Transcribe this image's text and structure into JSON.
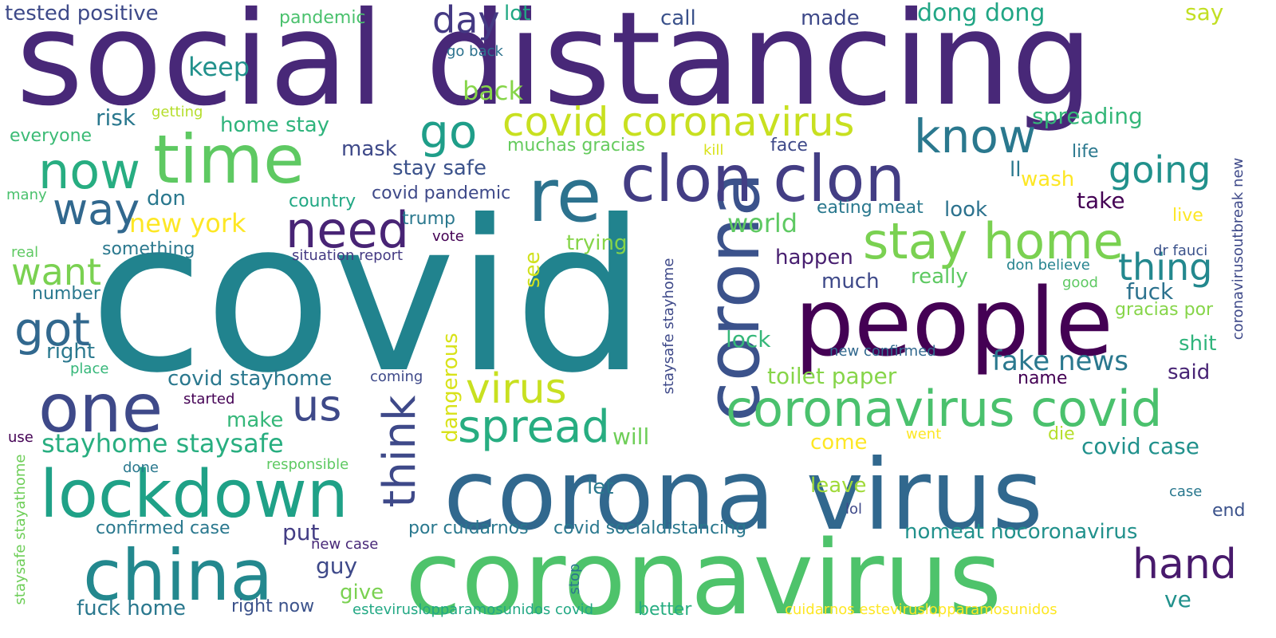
{
  "words": [
    {
      "text": "social distancing",
      "color": "#482878"
    },
    {
      "text": "covid",
      "color": "#21838e"
    },
    {
      "text": "coronavirus",
      "color": "#4ec36b"
    },
    {
      "text": "corona virus",
      "color": "#31688e"
    },
    {
      "text": "people",
      "color": "#440154"
    },
    {
      "text": "corona",
      "color": "#3b528b"
    },
    {
      "text": "re",
      "color": "#2c728e"
    },
    {
      "text": "clon clon",
      "color": "#433d84"
    },
    {
      "text": "time",
      "color": "#5ec962"
    },
    {
      "text": "one",
      "color": "#3e4989"
    },
    {
      "text": "china",
      "color": "#23888e"
    },
    {
      "text": "lockdown",
      "color": "#1fa187"
    },
    {
      "text": "coronavirus covid",
      "color": "#4ac16d"
    },
    {
      "text": "stay home",
      "color": "#7ad151"
    },
    {
      "text": "covid coronavirus",
      "color": "#c8e020"
    },
    {
      "text": "need",
      "color": "#482475"
    },
    {
      "text": "now",
      "color": "#27ad81"
    },
    {
      "text": "know",
      "color": "#2a788e"
    },
    {
      "text": "way",
      "color": "#31688e"
    },
    {
      "text": "go",
      "color": "#1f9e89"
    },
    {
      "text": "going",
      "color": "#21918c"
    },
    {
      "text": "want",
      "color": "#7ad151"
    },
    {
      "text": "got",
      "color": "#31688e"
    },
    {
      "text": "virus",
      "color": "#c8e020"
    },
    {
      "text": "spread",
      "color": "#27ad81"
    },
    {
      "text": "think",
      "color": "#3e4989"
    },
    {
      "text": "us",
      "color": "#3e4989"
    },
    {
      "text": "hand",
      "color": "#481a6c"
    },
    {
      "text": "thing",
      "color": "#23888e"
    },
    {
      "text": "day",
      "color": "#443983"
    },
    {
      "text": "stayhome staysafe",
      "color": "#28ae80"
    },
    {
      "text": "fake news",
      "color": "#2a788e"
    },
    {
      "text": "tested positive",
      "color": "#3e4a89"
    },
    {
      "text": "pandemic",
      "color": "#4ac16d"
    },
    {
      "text": "lot",
      "color": "#22a884"
    },
    {
      "text": "call",
      "color": "#3b528b"
    },
    {
      "text": "made",
      "color": "#3e4989"
    },
    {
      "text": "dong dong",
      "color": "#21a685"
    },
    {
      "text": "say",
      "color": "#c2df23"
    },
    {
      "text": "go back",
      "color": "#2c728e"
    },
    {
      "text": "keep",
      "color": "#21918c"
    },
    {
      "text": "back",
      "color": "#86d549"
    },
    {
      "text": "risk",
      "color": "#2a788e"
    },
    {
      "text": "getting",
      "color": "#b5de2b"
    },
    {
      "text": "home stay",
      "color": "#2fb47c"
    },
    {
      "text": "spreading",
      "color": "#35b779"
    },
    {
      "text": "everyone",
      "color": "#3bbb75"
    },
    {
      "text": "mask",
      "color": "#3e4989"
    },
    {
      "text": "muchas gracias",
      "color": "#65cb5e"
    },
    {
      "text": "kill",
      "color": "#d8e219"
    },
    {
      "text": "face",
      "color": "#3e4989"
    },
    {
      "text": "life",
      "color": "#2a788e"
    },
    {
      "text": "stay safe",
      "color": "#3b528b"
    },
    {
      "text": "ll",
      "color": "#2a788e"
    },
    {
      "text": "wash",
      "color": "#fde725"
    },
    {
      "text": "many",
      "color": "#4ac16d"
    },
    {
      "text": "don",
      "color": "#2a788e"
    },
    {
      "text": "country",
      "color": "#22a884"
    },
    {
      "text": "covid pandemic",
      "color": "#3e4989"
    },
    {
      "text": "world",
      "color": "#5ec962"
    },
    {
      "text": "eating meat",
      "color": "#2a788e"
    },
    {
      "text": "look",
      "color": "#2c728e"
    },
    {
      "text": "take",
      "color": "#440154"
    },
    {
      "text": "new york",
      "color": "#fde725"
    },
    {
      "text": "trump",
      "color": "#2a788e"
    },
    {
      "text": "live",
      "color": "#fde725"
    },
    {
      "text": "vote",
      "color": "#440154"
    },
    {
      "text": "dr fauci",
      "color": "#3b528b"
    },
    {
      "text": "real",
      "color": "#5ec962"
    },
    {
      "text": "something",
      "color": "#2a788e"
    },
    {
      "text": "situation report",
      "color": "#443a83"
    },
    {
      "text": "trying",
      "color": "#86d549"
    },
    {
      "text": "happen",
      "color": "#481f70"
    },
    {
      "text": "don believe",
      "color": "#25838e"
    },
    {
      "text": "coronavirusoutbreak new",
      "color": "#3e4989"
    },
    {
      "text": "see",
      "color": "#d0e11c"
    },
    {
      "text": "staysafe stayhome",
      "color": "#3e4989"
    },
    {
      "text": "much",
      "color": "#3e4989"
    },
    {
      "text": "really",
      "color": "#5ec962"
    },
    {
      "text": "good",
      "color": "#5ec962"
    },
    {
      "text": "fuck",
      "color": "#2c728e"
    },
    {
      "text": "number",
      "color": "#2a788e"
    },
    {
      "text": "gracias por",
      "color": "#86d549"
    },
    {
      "text": "lock",
      "color": "#35b779"
    },
    {
      "text": "shit",
      "color": "#2fb47c"
    },
    {
      "text": "right",
      "color": "#2a788e"
    },
    {
      "text": "dangerous",
      "color": "#d8e219"
    },
    {
      "text": "new confirmed",
      "color": "#31688e"
    },
    {
      "text": "place",
      "color": "#35b779"
    },
    {
      "text": "covid stayhome",
      "color": "#2a788e"
    },
    {
      "text": "said",
      "color": "#482475"
    },
    {
      "text": "toilet paper",
      "color": "#86d549"
    },
    {
      "text": "coming",
      "color": "#3e4989"
    },
    {
      "text": "name",
      "color": "#440154"
    },
    {
      "text": "started",
      "color": "#440154"
    },
    {
      "text": "make",
      "color": "#35b779"
    },
    {
      "text": "will",
      "color": "#6ece58"
    },
    {
      "text": "die",
      "color": "#b5de2b"
    },
    {
      "text": "covid case",
      "color": "#21918c"
    },
    {
      "text": "use",
      "color": "#440154"
    },
    {
      "text": "went",
      "color": "#fde725"
    },
    {
      "text": "come",
      "color": "#fde725"
    },
    {
      "text": "done",
      "color": "#2a788e"
    },
    {
      "text": "responsible",
      "color": "#5ec962"
    },
    {
      "text": "staysafe stayathome",
      "color": "#6ece58"
    },
    {
      "text": "let",
      "color": "#2a788e"
    },
    {
      "text": "leave",
      "color": "#a0da39"
    },
    {
      "text": "case",
      "color": "#2a788e"
    },
    {
      "text": "confirmed case",
      "color": "#2a788e"
    },
    {
      "text": "put",
      "color": "#433d84"
    },
    {
      "text": "por cuidarnos",
      "color": "#2a788e"
    },
    {
      "text": "covid socialdistancing",
      "color": "#2a788e"
    },
    {
      "text": "nomeat nocoronavirus",
      "color": "#21918c"
    },
    {
      "text": "lol",
      "color": "#3e4989"
    },
    {
      "text": "end",
      "color": "#3b528b"
    },
    {
      "text": "new case",
      "color": "#482878"
    },
    {
      "text": "guy",
      "color": "#3e4989"
    },
    {
      "text": "give",
      "color": "#7ad151"
    },
    {
      "text": "stop",
      "color": "#2a788e"
    },
    {
      "text": "ve",
      "color": "#21918c"
    },
    {
      "text": "fuck home",
      "color": "#2a788e"
    },
    {
      "text": "right now",
      "color": "#3b528b"
    },
    {
      "text": "esteviruslopparamosunidos covid",
      "color": "#22a884"
    },
    {
      "text": "better",
      "color": "#27ad81"
    },
    {
      "text": "cuidarnos esteviruslopparamosunidos",
      "color": "#fde725"
    }
  ]
}
